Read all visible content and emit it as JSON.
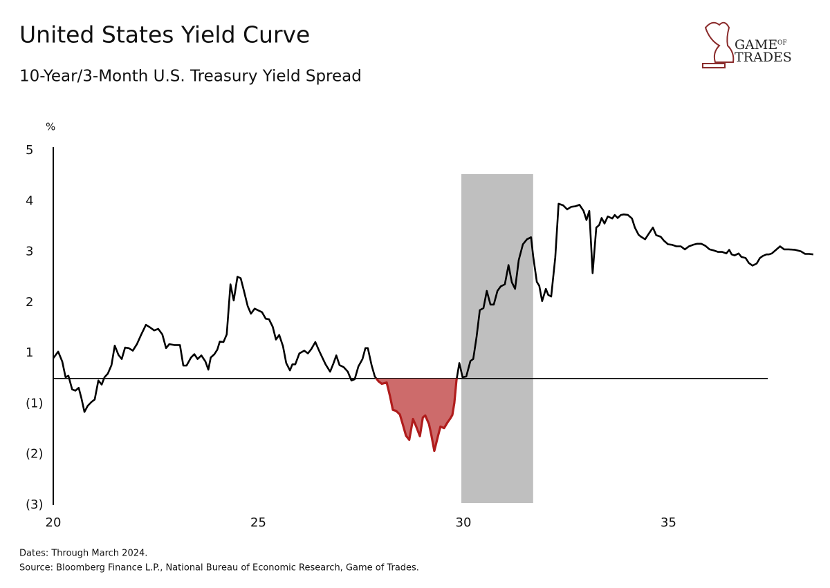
{
  "chart_data": {
    "type": "line",
    "title": "United States Yield Curve",
    "subtitle": "10-Year/3-Month U.S. Treasury Yield Spread",
    "y_unit": "%",
    "notes": [
      "Dates: Through March 2024.",
      "Source: Bloomberg Finance L.P., National Bureau of Economic Research, Game of Trades."
    ],
    "logo": [
      "GAME",
      "OF",
      "TRADES"
    ],
    "color": "#000000",
    "x": [
      20.0,
      20.12,
      20.22,
      20.3,
      20.37,
      20.46,
      20.54,
      20.62,
      20.69,
      20.76,
      20.84,
      20.93,
      21.01,
      21.1,
      21.18,
      21.25,
      21.33,
      21.42,
      21.5,
      21.59,
      21.67,
      21.75,
      21.84,
      21.94,
      22.04,
      22.14,
      22.26,
      22.36,
      22.46,
      22.56,
      22.66,
      22.75,
      22.83,
      22.95,
      23.09,
      23.17,
      23.25,
      23.36,
      23.44,
      23.52,
      23.61,
      23.71,
      23.78,
      23.84,
      23.93,
      24.0,
      24.06,
      24.15,
      24.23,
      24.32,
      24.4,
      24.49,
      24.57,
      24.65,
      24.74,
      24.82,
      24.91,
      25.01,
      25.09,
      25.18,
      25.26,
      25.35,
      25.43,
      25.51,
      25.6,
      25.68,
      25.77,
      25.83,
      25.9,
      26.0,
      26.12,
      26.21,
      26.29,
      26.39,
      26.48,
      26.56,
      26.64,
      26.75,
      26.83,
      26.9,
      26.98,
      27.08,
      27.18,
      27.27,
      27.35,
      27.44,
      27.54,
      27.61,
      27.67,
      27.76,
      27.84,
      27.93,
      28.01,
      28.13,
      28.21,
      28.28,
      28.36,
      28.45,
      28.52,
      28.6,
      28.68,
      28.77,
      28.85,
      28.94,
      29.01,
      29.07,
      29.16,
      29.22,
      29.29,
      29.38,
      29.44,
      29.53,
      29.61,
      29.68,
      29.73,
      29.78,
      29.83,
      29.9,
      29.98,
      30.07,
      30.17,
      30.24,
      30.32,
      30.4,
      30.49,
      30.57,
      30.66,
      30.74,
      30.83,
      30.91,
      31.01,
      31.1,
      31.18,
      31.26,
      31.35,
      31.45,
      31.55,
      31.65,
      31.7,
      31.79,
      31.85,
      31.92,
      32.01,
      32.07,
      32.14,
      32.24,
      32.32,
      32.43,
      32.53,
      32.63,
      32.73,
      32.83,
      32.93,
      33.0,
      33.07,
      33.15,
      33.24,
      33.31,
      33.37,
      33.44,
      33.52,
      33.63,
      33.69,
      33.76,
      33.84,
      33.91,
      34.01,
      34.11,
      34.18,
      34.27,
      34.33,
      34.43,
      34.52,
      34.62,
      34.7,
      34.81,
      34.89,
      34.99,
      35.09,
      35.19,
      35.3,
      35.4,
      35.5,
      35.6,
      35.7,
      35.8,
      35.9,
      36.0,
      36.1,
      36.21,
      36.31,
      36.41,
      36.48,
      36.54,
      36.61,
      36.71,
      36.78,
      36.88,
      36.96,
      37.05,
      37.15,
      37.23,
      37.3,
      37.39,
      37.45,
      37.52,
      37.62,
      37.72,
      37.82,
      37.93,
      38.09,
      38.23,
      38.33,
      38.43,
      38.53
    ],
    "values": [
      0.8,
      1.03,
      0.67,
      0.05,
      0.11,
      -0.43,
      -0.48,
      -0.37,
      -0.8,
      -1.16,
      -1.04,
      -0.93,
      -0.83,
      -0.08,
      -0.24,
      0.05,
      0.19,
      0.53,
      1.15,
      0.93,
      0.77,
      1.11,
      1.1,
      1.05,
      1.18,
      1.36,
      1.56,
      1.51,
      1.45,
      1.48,
      1.37,
      1.1,
      1.18,
      1.16,
      1.16,
      0.51,
      0.51,
      0.83,
      0.96,
      0.77,
      0.91,
      0.67,
      0.35,
      0.83,
      0.96,
      1.07,
      1.23,
      1.22,
      1.37,
      2.36,
      2.04,
      2.51,
      2.48,
      2.23,
      1.93,
      1.78,
      1.88,
      1.84,
      1.81,
      1.68,
      1.67,
      1.52,
      1.27,
      1.36,
      1.14,
      0.61,
      0.32,
      0.56,
      0.56,
      0.99,
      1.05,
      0.99,
      1.08,
      1.22,
      1.05,
      0.83,
      0.56,
      0.27,
      0.59,
      0.91,
      0.53,
      0.45,
      0.27,
      -0.08,
      -0.03,
      0.48,
      0.77,
      1.1,
      1.1,
      0.53,
      0.08,
      -0.11,
      -0.21,
      -0.16,
      -0.69,
      -1.12,
      -1.14,
      -1.21,
      -1.4,
      -1.63,
      -1.71,
      -1.3,
      -1.45,
      -1.64,
      -1.27,
      -1.23,
      -1.4,
      -1.62,
      -1.93,
      -1.64,
      -1.45,
      -1.48,
      -1.37,
      -1.29,
      -1.22,
      -0.96,
      -0.08,
      0.61,
      0.05,
      0.08,
      0.69,
      0.77,
      1.32,
      1.85,
      1.89,
      2.23,
      1.96,
      1.96,
      2.23,
      2.32,
      2.36,
      2.74,
      2.4,
      2.27,
      2.84,
      3.15,
      3.25,
      3.29,
      2.92,
      2.41,
      2.33,
      2.03,
      2.27,
      2.15,
      2.12,
      2.89,
      3.95,
      3.92,
      3.84,
      3.89,
      3.9,
      3.93,
      3.81,
      3.63,
      3.81,
      2.58,
      3.48,
      3.53,
      3.67,
      3.56,
      3.7,
      3.66,
      3.73,
      3.67,
      3.73,
      3.74,
      3.73,
      3.66,
      3.48,
      3.34,
      3.3,
      3.25,
      3.36,
      3.48,
      3.33,
      3.3,
      3.22,
      3.15,
      3.14,
      3.11,
      3.11,
      3.05,
      3.11,
      3.14,
      3.16,
      3.16,
      3.12,
      3.05,
      3.03,
      3.0,
      3.0,
      2.97,
      3.04,
      2.95,
      2.93,
      2.97,
      2.9,
      2.88,
      2.78,
      2.73,
      2.77,
      2.88,
      2.92,
      2.95,
      2.95,
      2.97,
      3.04,
      3.11,
      3.05,
      3.05,
      3.04,
      3.01,
      2.96,
      2.96,
      2.95
    ],
    "xlim": [
      20,
      38.55
    ],
    "xticks": [
      20,
      25,
      30,
      35
    ],
    "ylim": [
      -3,
      5
    ],
    "yticks": [
      5,
      4,
      3,
      2,
      1,
      {
        "value": -1,
        "label": "(1)"
      },
      {
        "value": -2,
        "label": "(2)"
      },
      {
        "value": -3,
        "label": "(3)"
      }
    ],
    "recession": {
      "start": 29.95,
      "end": 31.7,
      "color": "#bfbfbf"
    },
    "inversion": {
      "start": 27.84,
      "end": 29.9,
      "fill": "#cd6b6b",
      "line": "#b01c1c"
    }
  }
}
